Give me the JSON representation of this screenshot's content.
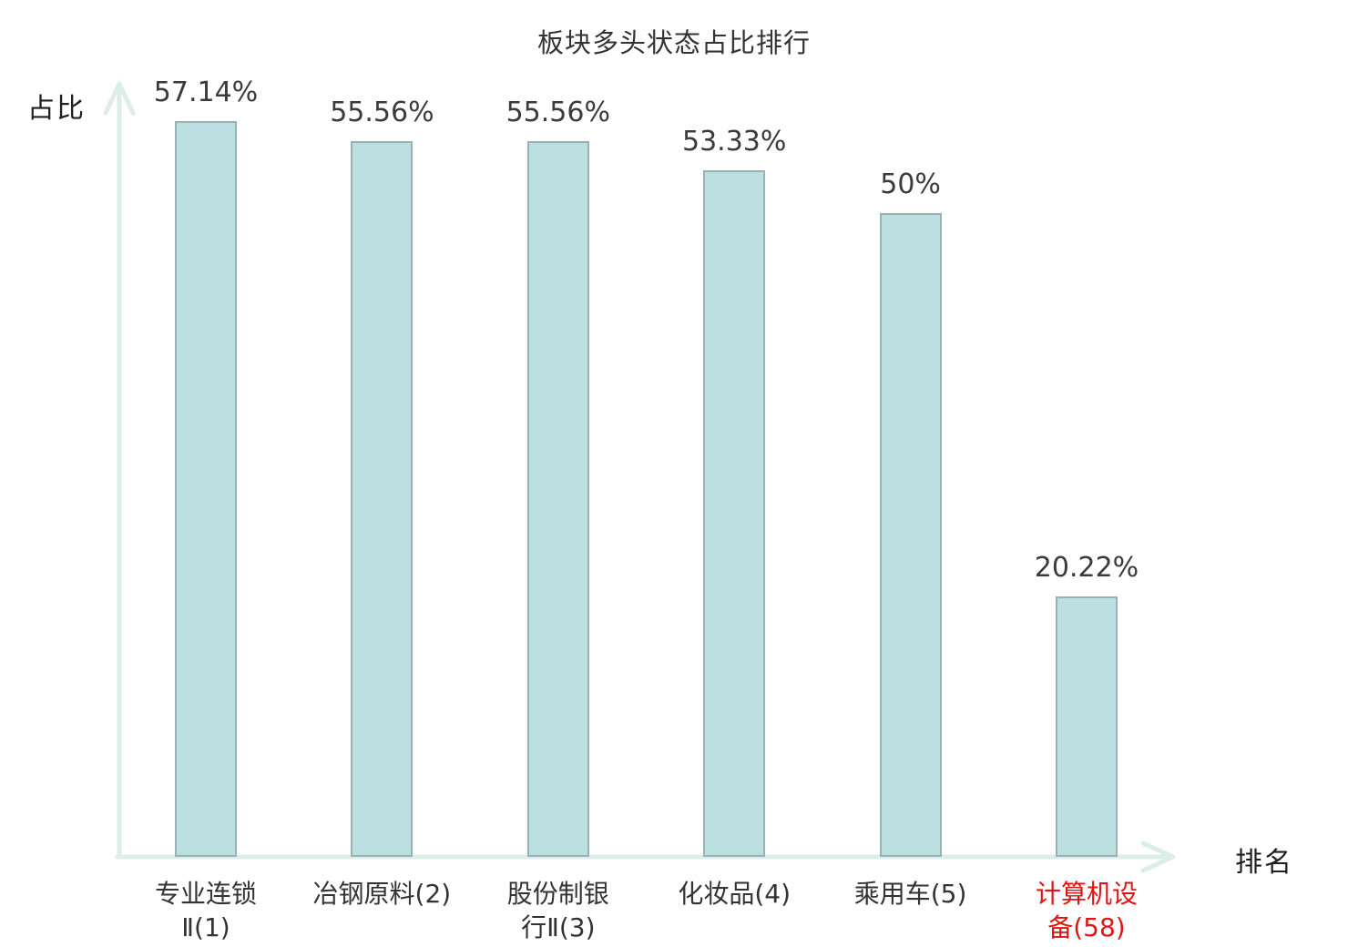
{
  "chart_data": {
    "type": "bar",
    "title": "板块多头状态占比排行",
    "xlabel": "排名",
    "ylabel": "占比",
    "ylim": [
      0,
      60
    ],
    "grid": false,
    "legend": null,
    "categories": [
      "专业连锁Ⅱ(1)",
      "冶钢原料(2)",
      "股份制银行Ⅱ(3)",
      "化妆品(4)",
      "乘用车(5)",
      "计算机设备(58)"
    ],
    "categories_wrapped": [
      "专业连锁\nⅡ(1)",
      "冶钢原料(2)",
      "股份制银\n行Ⅱ(3)",
      "化妆品(4)",
      "乘用车(5)",
      "计算机设\n备(58)"
    ],
    "values": [
      57.14,
      55.56,
      55.56,
      53.33,
      50,
      20.22
    ],
    "value_labels": [
      "57.14%",
      "55.56%",
      "55.56%",
      "53.33%",
      "50%",
      "20.22%"
    ],
    "highlight_index": 5,
    "colors": {
      "bar_fill": "#bcdfe2",
      "bar_border": "#9ab1b5",
      "axis": "#dcedea",
      "text": "#333333",
      "value_text": "#3b3b3b",
      "highlight_text": "#e01414",
      "background": "#ffffff"
    }
  }
}
